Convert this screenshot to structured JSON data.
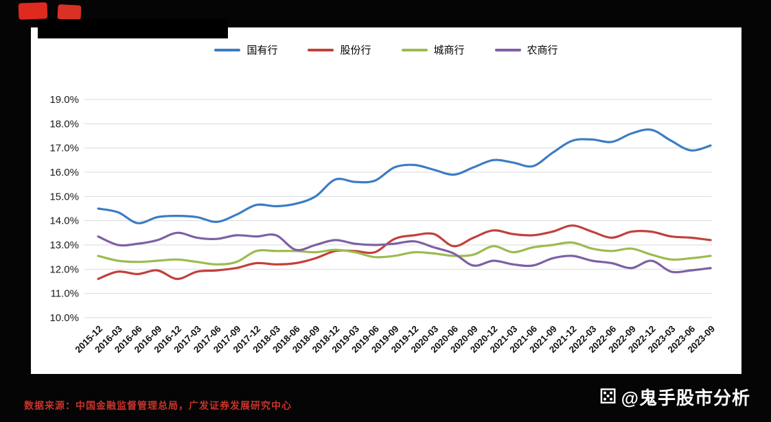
{
  "footer": {
    "source_note": "数据来源：中国金融监督管理总局，广发证券发展研究中心",
    "watermark": "@鬼手股市分析",
    "watermark_icon": "dice-icon"
  },
  "chart_data": {
    "type": "line",
    "title": "",
    "xlabel": "",
    "ylabel": "",
    "ylim": [
      10.0,
      19.0
    ],
    "ytick_step": 1.0,
    "ytick_labels": [
      "19.0%",
      "18.0%",
      "17.0%",
      "16.0%",
      "15.0%",
      "14.0%",
      "13.0%",
      "12.0%",
      "11.0%",
      "10.0%"
    ],
    "grid": true,
    "legend_position": "top",
    "categories": [
      "2015-12",
      "2016-03",
      "2016-06",
      "2016-09",
      "2016-12",
      "2017-03",
      "2017-06",
      "2017-09",
      "2017-12",
      "2018-03",
      "2018-06",
      "2018-09",
      "2018-12",
      "2019-03",
      "2019-06",
      "2019-09",
      "2019-12",
      "2020-03",
      "2020-06",
      "2020-09",
      "2020-12",
      "2021-03",
      "2021-06",
      "2021-09",
      "2021-12",
      "2022-03",
      "2022-06",
      "2022-09",
      "2022-12",
      "2023-03",
      "2023-06",
      "2023-09"
    ],
    "series": [
      {
        "name": "国有行",
        "color": "#3B7CC4",
        "values": [
          14.5,
          14.35,
          13.9,
          14.15,
          14.2,
          14.15,
          13.95,
          14.25,
          14.65,
          14.6,
          14.7,
          15.0,
          15.7,
          15.6,
          15.65,
          16.2,
          16.3,
          16.1,
          15.9,
          16.2,
          16.5,
          16.4,
          16.25,
          16.8,
          17.3,
          17.35,
          17.25,
          17.6,
          17.75,
          17.3,
          16.9,
          17.1
        ]
      },
      {
        "name": "股份行",
        "color": "#C2403B",
        "values": [
          11.6,
          11.9,
          11.8,
          11.95,
          11.6,
          11.9,
          11.95,
          12.05,
          12.25,
          12.2,
          12.25,
          12.45,
          12.75,
          12.75,
          12.7,
          13.25,
          13.4,
          13.45,
          12.95,
          13.3,
          13.6,
          13.45,
          13.4,
          13.55,
          13.8,
          13.55,
          13.3,
          13.55,
          13.55,
          13.35,
          13.3,
          13.2
        ]
      },
      {
        "name": "城商行",
        "color": "#9CBB4E",
        "values": [
          12.55,
          12.35,
          12.3,
          12.35,
          12.4,
          12.3,
          12.2,
          12.3,
          12.75,
          12.75,
          12.75,
          12.7,
          12.8,
          12.7,
          12.5,
          12.55,
          12.7,
          12.65,
          12.55,
          12.6,
          12.95,
          12.7,
          12.9,
          13.0,
          13.1,
          12.85,
          12.75,
          12.85,
          12.6,
          12.4,
          12.45,
          12.55
        ]
      },
      {
        "name": "农商行",
        "color": "#7E5FA4",
        "values": [
          13.35,
          13.0,
          13.05,
          13.2,
          13.5,
          13.3,
          13.25,
          13.4,
          13.35,
          13.4,
          12.8,
          13.0,
          13.2,
          13.05,
          13.0,
          13.05,
          13.15,
          12.9,
          12.65,
          12.15,
          12.35,
          12.2,
          12.15,
          12.45,
          12.55,
          12.35,
          12.25,
          12.05,
          12.35,
          11.9,
          11.95,
          12.05
        ]
      }
    ]
  }
}
